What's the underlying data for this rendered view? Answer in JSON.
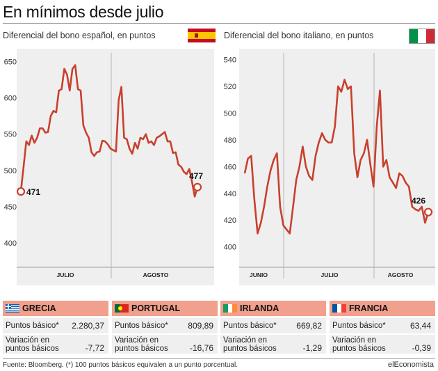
{
  "title": "En mínimos desde julio",
  "source": "Fuente: Bloomberg. (*) 100 puntos básicos equivalen a un punto porcentual.",
  "brand": "elEconomista",
  "colors": {
    "line": "#c8402e",
    "panel": "#efefef",
    "card_header": "#f0a08c"
  },
  "chart_data": [
    {
      "type": "line",
      "title": "",
      "subtitle": "Diferencial del bono español, en puntos",
      "flag_icon": "spain-flag-icon",
      "xlabel": "",
      "ylabel": "",
      "x_ticks": [
        "JULIO",
        "AGOSTO"
      ],
      "y_ticks": [
        400,
        450,
        500,
        550,
        600,
        650
      ],
      "ylim": [
        380,
        660
      ],
      "grid": false,
      "series": [
        {
          "values": [
            471,
            505,
            540,
            535,
            548,
            538,
            545,
            558,
            558,
            552,
            553,
            575,
            582,
            580,
            610,
            612,
            640,
            632,
            610,
            640,
            645,
            612,
            610,
            562,
            552,
            545,
            525,
            520,
            525,
            526,
            541,
            540,
            536,
            530,
            528,
            526,
            597,
            615,
            545,
            543,
            530,
            523,
            538,
            530,
            545,
            543,
            550,
            538,
            540,
            535,
            545,
            547,
            550,
            553,
            540,
            540,
            524,
            525,
            508,
            505,
            498,
            495,
            502,
            484,
            464,
            477
          ]
        }
      ],
      "start_label": "471",
      "end_label": "477"
    },
    {
      "type": "line",
      "title": "",
      "subtitle": "Diferencial del bono italiano, en puntos",
      "flag_icon": "italy-flag-icon",
      "xlabel": "",
      "ylabel": "",
      "x_ticks": [
        "JUNIO",
        "JULIO",
        "AGOSTO"
      ],
      "y_ticks": [
        400,
        420,
        440,
        460,
        480,
        500,
        520,
        540
      ],
      "ylim": [
        392,
        544
      ],
      "grid": false,
      "series": [
        {
          "values": [
            455,
            466,
            468,
            435,
            410,
            418,
            430,
            445,
            457,
            465,
            470,
            430,
            416,
            413,
            410,
            430,
            450,
            460,
            475,
            460,
            453,
            450,
            468,
            478,
            485,
            480,
            478,
            478,
            490,
            520,
            516,
            525,
            518,
            520,
            470,
            452,
            465,
            470,
            480,
            462,
            445,
            490,
            517,
            460,
            465,
            452,
            448,
            444,
            455,
            453,
            448,
            445,
            430,
            428,
            427,
            430,
            418,
            426
          ]
        }
      ],
      "end_label": "426"
    }
  ],
  "cards": [
    {
      "name": "GRECIA",
      "flag_icon": "greece-flag-icon",
      "basic_label": "Puntos básico*",
      "basic_value": "2.280,37",
      "var_label_1": "Variación en",
      "var_label_2": "puntos básicos",
      "var_value": "-7,72"
    },
    {
      "name": "PORTUGAL",
      "flag_icon": "portugal-flag-icon",
      "basic_label": "Puntos básico*",
      "basic_value": "809,89",
      "var_label_1": "Variación en",
      "var_label_2": "puntos básicos",
      "var_value": "-16,76"
    },
    {
      "name": "IRLANDA",
      "flag_icon": "ireland-flag-icon",
      "basic_label": "Puntos básico*",
      "basic_value": "669,82",
      "var_label_1": "Variación en",
      "var_label_2": "puntos básicos",
      "var_value": "-1,29"
    },
    {
      "name": "FRANCIA",
      "flag_icon": "france-flag-icon",
      "basic_label": "Puntos básico*",
      "basic_value": "63,44",
      "var_label_1": "Variación en",
      "var_label_2": "puntos básicos",
      "var_value": "-0,39"
    }
  ]
}
